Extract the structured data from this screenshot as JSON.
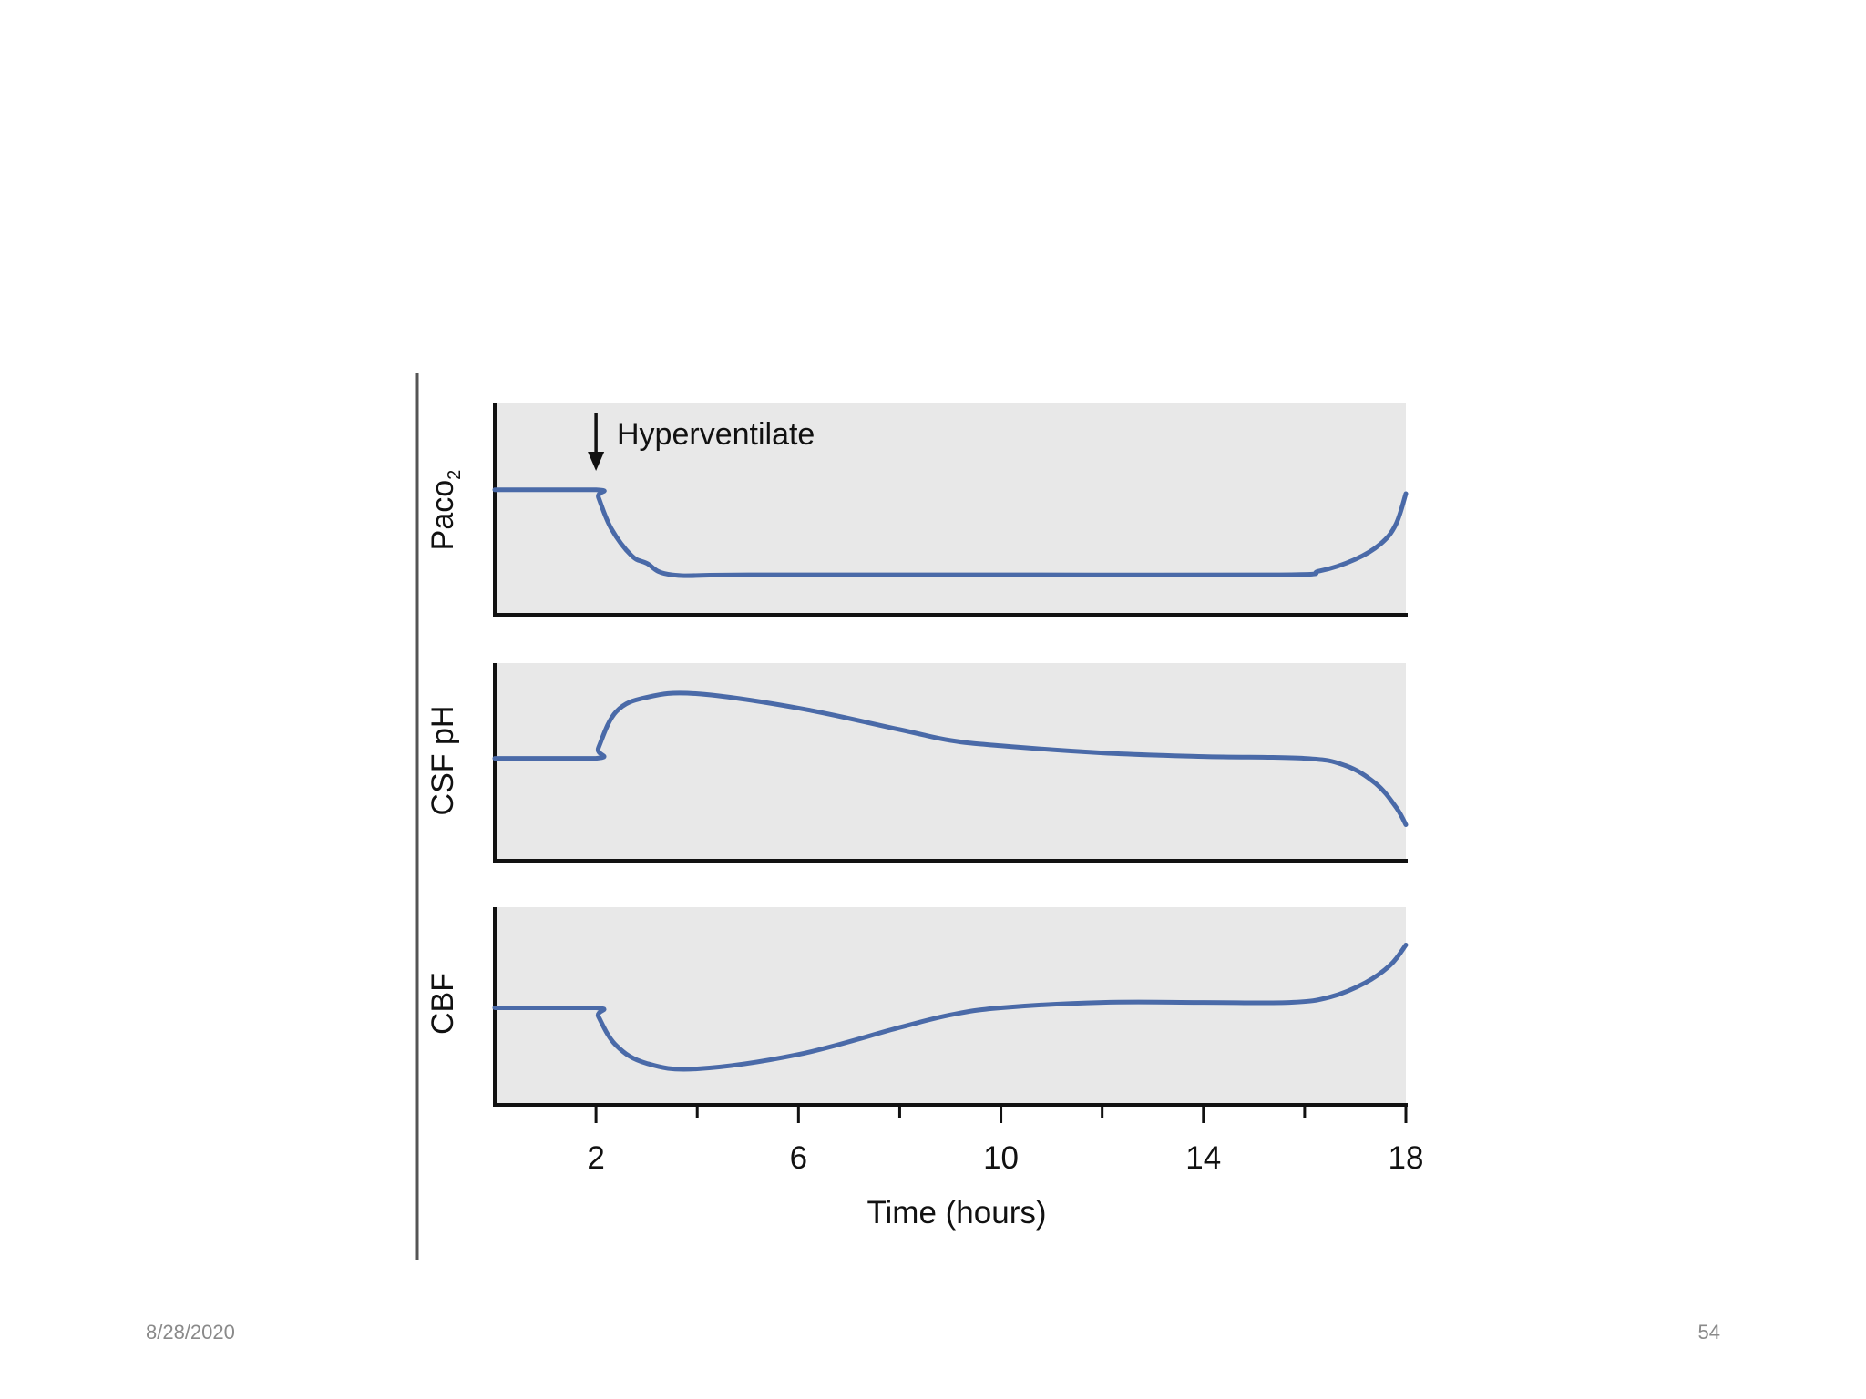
{
  "slide": {
    "date": "8/28/2020",
    "page_number": "54"
  },
  "colors": {
    "line": "#4a6aa8",
    "panel_background": "#e8e8e8",
    "axis": "#111111"
  },
  "chart_data": {
    "type": "line",
    "title": "",
    "xlabel": "Time (hours)",
    "x_ticks": [
      2,
      6,
      10,
      14,
      18
    ],
    "x_minor_ticks": [
      4,
      8,
      12,
      16
    ],
    "xlim": [
      0,
      18
    ],
    "annotation": {
      "text": "Hyperventilate",
      "x": 2
    },
    "panels": [
      {
        "ylabel": "Paco",
        "ylabel_subscript": "2",
        "ylim": [
          0,
          100
        ],
        "x": [
          0,
          2,
          2.05,
          2.3,
          2.7,
          3.0,
          3.5,
          5,
          10,
          15.5,
          16.3,
          17.0,
          17.5,
          17.8,
          18
        ],
        "values": [
          60,
          60,
          56,
          40,
          26,
          22,
          16,
          16,
          16,
          16,
          18,
          24,
          32,
          42,
          58
        ]
      },
      {
        "ylabel": "CSF pH",
        "ylim": [
          0,
          100
        ],
        "x": [
          0,
          2,
          2.05,
          2.4,
          3.0,
          4.0,
          6.0,
          8.0,
          9.0,
          10.0,
          12.0,
          14.0,
          16.0,
          16.8,
          17.4,
          17.8,
          18
        ],
        "values": [
          52,
          52,
          58,
          78,
          86,
          88,
          80,
          68,
          62,
          59,
          55,
          53,
          52,
          48,
          38,
          25,
          15
        ]
      },
      {
        "ylabel": "CBF",
        "ylim": [
          0,
          100
        ],
        "x": [
          0,
          2,
          2.05,
          2.4,
          3.0,
          4.0,
          6.0,
          8.0,
          9.0,
          10.0,
          12.0,
          14.0,
          15.7,
          16.5,
          17.2,
          17.7,
          18
        ],
        "values": [
          49,
          49,
          44,
          28,
          18,
          15,
          23,
          38,
          45,
          49,
          52,
          52,
          52,
          55,
          63,
          73,
          84
        ]
      }
    ]
  }
}
